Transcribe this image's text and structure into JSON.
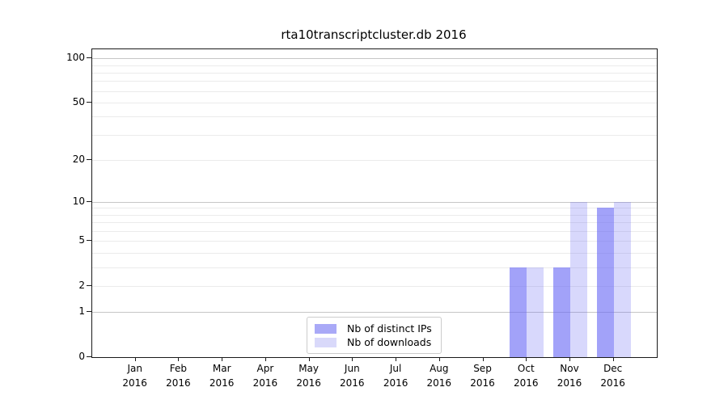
{
  "chart_data": {
    "type": "bar",
    "title": "rta10transcriptcluster.db 2016",
    "categories": [
      "Jan",
      "Feb",
      "Mar",
      "Apr",
      "May",
      "Jun",
      "Jul",
      "Aug",
      "Sep",
      "Oct",
      "Nov",
      "Dec"
    ],
    "year": "2016",
    "series": [
      {
        "name": "Nb of distinct IPs",
        "key": "distinct-ips",
        "swatch_color": "#a9a9f7",
        "bar_color": "rgba(105,105,245,0.62)",
        "values": [
          0,
          0,
          0,
          0,
          0,
          0,
          0,
          0,
          0,
          3,
          3,
          9
        ]
      },
      {
        "name": "Nb of downloads",
        "key": "downloads",
        "swatch_color": "#d9d9fa",
        "bar_color": "rgba(105,105,245,0.26)",
        "values": [
          0,
          0,
          0,
          0,
          0,
          0,
          0,
          0,
          0,
          3,
          10,
          10
        ]
      }
    ],
    "yscale": "log1p",
    "ylim": [
      0,
      115
    ],
    "yticks": [
      0,
      1,
      2,
      5,
      10,
      20,
      50,
      100
    ],
    "major_gridlines": [
      1,
      10,
      100
    ],
    "minor_gridlines": [
      2,
      3,
      4,
      5,
      6,
      7,
      8,
      9,
      20,
      30,
      40,
      50,
      60,
      70,
      80,
      90
    ],
    "grid": true,
    "legend_position": "lower center",
    "xlabel": "",
    "ylabel": ""
  }
}
